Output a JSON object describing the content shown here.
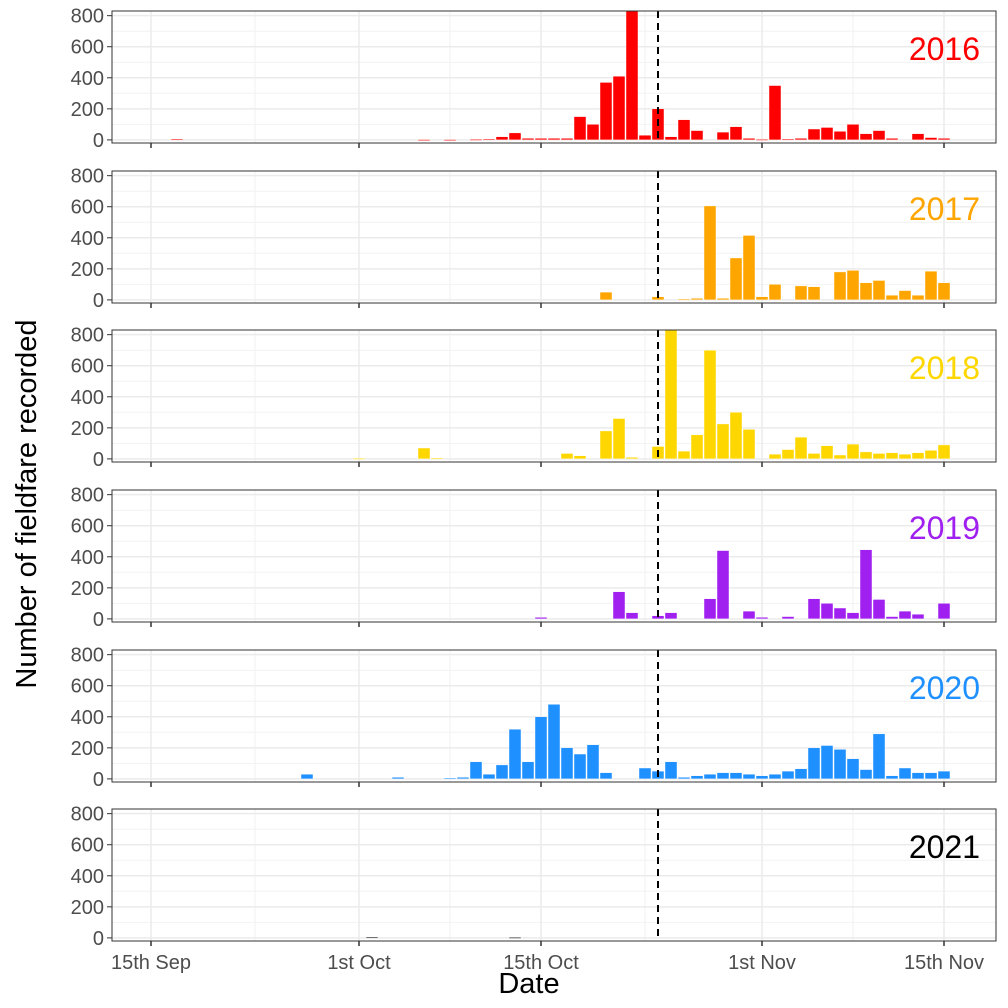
{
  "chart_data": {
    "type": "bar",
    "xlabel": "Date",
    "ylabel": "Number of fieldfare recorded",
    "x_axis": {
      "range": [
        "2021-09-12",
        "2021-11-19"
      ],
      "ticks": [
        {
          "date": "2021-09-15",
          "label": "15th Sep"
        },
        {
          "date": "2021-10-01",
          "label": "1st Oct"
        },
        {
          "date": "2021-10-15",
          "label": "15th Oct"
        },
        {
          "date": "2021-11-01",
          "label": "1st Nov"
        },
        {
          "date": "2021-11-15",
          "label": "15th Nov"
        }
      ],
      "minor_gridlines": [
        "2021-09-23",
        "2021-10-08",
        "2021-10-23",
        "2021-11-08"
      ]
    },
    "ylim": [
      -20,
      830
    ],
    "y_ticks": [
      0,
      200,
      400,
      600,
      800
    ],
    "grid": true,
    "reference_line": {
      "date": "2021-10-24",
      "style": "dashed"
    },
    "series": [
      {
        "name": "2016",
        "color": "#FF0000",
        "data": [
          [
            "2021-09-17",
            5
          ],
          [
            "2021-10-06",
            2
          ],
          [
            "2021-10-08",
            2
          ],
          [
            "2021-10-10",
            3
          ],
          [
            "2021-10-11",
            5
          ],
          [
            "2021-10-12",
            20
          ],
          [
            "2021-10-13",
            45
          ],
          [
            "2021-10-14",
            10
          ],
          [
            "2021-10-15",
            10
          ],
          [
            "2021-10-16",
            10
          ],
          [
            "2021-10-17",
            10
          ],
          [
            "2021-10-18",
            150
          ],
          [
            "2021-10-19",
            100
          ],
          [
            "2021-10-20",
            370
          ],
          [
            "2021-10-21",
            410
          ],
          [
            "2021-10-22",
            860
          ],
          [
            "2021-10-23",
            30
          ],
          [
            "2021-10-24",
            200
          ],
          [
            "2021-10-25",
            20
          ],
          [
            "2021-10-26",
            130
          ],
          [
            "2021-10-27",
            60
          ],
          [
            "2021-10-29",
            50
          ],
          [
            "2021-10-30",
            85
          ],
          [
            "2021-10-31",
            10
          ],
          [
            "2021-11-01",
            3
          ],
          [
            "2021-11-02",
            350
          ],
          [
            "2021-11-03",
            5
          ],
          [
            "2021-11-04",
            10
          ],
          [
            "2021-11-05",
            70
          ],
          [
            "2021-11-06",
            80
          ],
          [
            "2021-11-07",
            55
          ],
          [
            "2021-11-08",
            100
          ],
          [
            "2021-11-09",
            40
          ],
          [
            "2021-11-10",
            60
          ],
          [
            "2021-11-11",
            10
          ],
          [
            "2021-11-13",
            40
          ],
          [
            "2021-11-14",
            15
          ],
          [
            "2021-11-15",
            10
          ]
        ]
      },
      {
        "name": "2017",
        "color": "#FFA500",
        "data": [
          [
            "2021-10-20",
            50
          ],
          [
            "2021-10-24",
            20
          ],
          [
            "2021-10-26",
            5
          ],
          [
            "2021-10-27",
            10
          ],
          [
            "2021-10-28",
            605
          ],
          [
            "2021-10-29",
            10
          ],
          [
            "2021-10-30",
            270
          ],
          [
            "2021-10-31",
            415
          ],
          [
            "2021-11-01",
            20
          ],
          [
            "2021-11-02",
            100
          ],
          [
            "2021-11-04",
            90
          ],
          [
            "2021-11-05",
            85
          ],
          [
            "2021-11-07",
            180
          ],
          [
            "2021-11-08",
            190
          ],
          [
            "2021-11-09",
            110
          ],
          [
            "2021-11-10",
            125
          ],
          [
            "2021-11-11",
            30
          ],
          [
            "2021-11-12",
            60
          ],
          [
            "2021-11-13",
            30
          ],
          [
            "2021-11-14",
            185
          ],
          [
            "2021-11-15",
            110
          ]
        ]
      },
      {
        "name": "2018",
        "color": "#FFD700",
        "data": [
          [
            "2021-10-01",
            3
          ],
          [
            "2021-10-06",
            70
          ],
          [
            "2021-10-07",
            5
          ],
          [
            "2021-10-17",
            35
          ],
          [
            "2021-10-18",
            20
          ],
          [
            "2021-10-20",
            180
          ],
          [
            "2021-10-21",
            260
          ],
          [
            "2021-10-22",
            10
          ],
          [
            "2021-10-24",
            80
          ],
          [
            "2021-10-25",
            840
          ],
          [
            "2021-10-26",
            50
          ],
          [
            "2021-10-27",
            155
          ],
          [
            "2021-10-28",
            700
          ],
          [
            "2021-10-29",
            225
          ],
          [
            "2021-10-30",
            300
          ],
          [
            "2021-10-31",
            190
          ],
          [
            "2021-11-02",
            30
          ],
          [
            "2021-11-03",
            60
          ],
          [
            "2021-11-04",
            140
          ],
          [
            "2021-11-05",
            35
          ],
          [
            "2021-11-06",
            85
          ],
          [
            "2021-11-07",
            25
          ],
          [
            "2021-11-08",
            95
          ],
          [
            "2021-11-09",
            45
          ],
          [
            "2021-11-10",
            35
          ],
          [
            "2021-11-11",
            40
          ],
          [
            "2021-11-12",
            30
          ],
          [
            "2021-11-13",
            40
          ],
          [
            "2021-11-14",
            55
          ],
          [
            "2021-11-15",
            90
          ]
        ]
      },
      {
        "name": "2019",
        "color": "#A020F0",
        "data": [
          [
            "2021-10-15",
            10
          ],
          [
            "2021-10-21",
            175
          ],
          [
            "2021-10-22",
            40
          ],
          [
            "2021-10-24",
            20
          ],
          [
            "2021-10-25",
            40
          ],
          [
            "2021-10-28",
            130
          ],
          [
            "2021-10-29",
            440
          ],
          [
            "2021-10-31",
            50
          ],
          [
            "2021-11-01",
            10
          ],
          [
            "2021-11-03",
            15
          ],
          [
            "2021-11-05",
            130
          ],
          [
            "2021-11-06",
            100
          ],
          [
            "2021-11-07",
            70
          ],
          [
            "2021-11-08",
            40
          ],
          [
            "2021-11-09",
            445
          ],
          [
            "2021-11-10",
            125
          ],
          [
            "2021-11-11",
            15
          ],
          [
            "2021-11-12",
            50
          ],
          [
            "2021-11-13",
            30
          ],
          [
            "2021-11-15",
            100
          ]
        ]
      },
      {
        "name": "2020",
        "color": "#1E90FF",
        "data": [
          [
            "2021-09-27",
            30
          ],
          [
            "2021-10-04",
            10
          ],
          [
            "2021-10-08",
            5
          ],
          [
            "2021-10-09",
            10
          ],
          [
            "2021-10-10",
            110
          ],
          [
            "2021-10-11",
            30
          ],
          [
            "2021-10-12",
            90
          ],
          [
            "2021-10-13",
            320
          ],
          [
            "2021-10-14",
            110
          ],
          [
            "2021-10-15",
            400
          ],
          [
            "2021-10-16",
            480
          ],
          [
            "2021-10-17",
            200
          ],
          [
            "2021-10-18",
            160
          ],
          [
            "2021-10-19",
            220
          ],
          [
            "2021-10-20",
            40
          ],
          [
            "2021-10-23",
            70
          ],
          [
            "2021-10-24",
            50
          ],
          [
            "2021-10-25",
            110
          ],
          [
            "2021-10-26",
            10
          ],
          [
            "2021-10-27",
            20
          ],
          [
            "2021-10-28",
            30
          ],
          [
            "2021-10-29",
            40
          ],
          [
            "2021-10-30",
            40
          ],
          [
            "2021-10-31",
            30
          ],
          [
            "2021-11-01",
            20
          ],
          [
            "2021-11-02",
            30
          ],
          [
            "2021-11-03",
            50
          ],
          [
            "2021-11-04",
            65
          ],
          [
            "2021-11-05",
            200
          ],
          [
            "2021-11-06",
            215
          ],
          [
            "2021-11-07",
            190
          ],
          [
            "2021-11-08",
            130
          ],
          [
            "2021-11-09",
            60
          ],
          [
            "2021-11-10",
            290
          ],
          [
            "2021-11-11",
            20
          ],
          [
            "2021-11-12",
            70
          ],
          [
            "2021-11-13",
            40
          ],
          [
            "2021-11-14",
            40
          ],
          [
            "2021-11-15",
            50
          ]
        ]
      },
      {
        "name": "2021",
        "color": "#000000",
        "data": [
          [
            "2021-10-02",
            5
          ],
          [
            "2021-10-13",
            3
          ]
        ]
      }
    ]
  }
}
